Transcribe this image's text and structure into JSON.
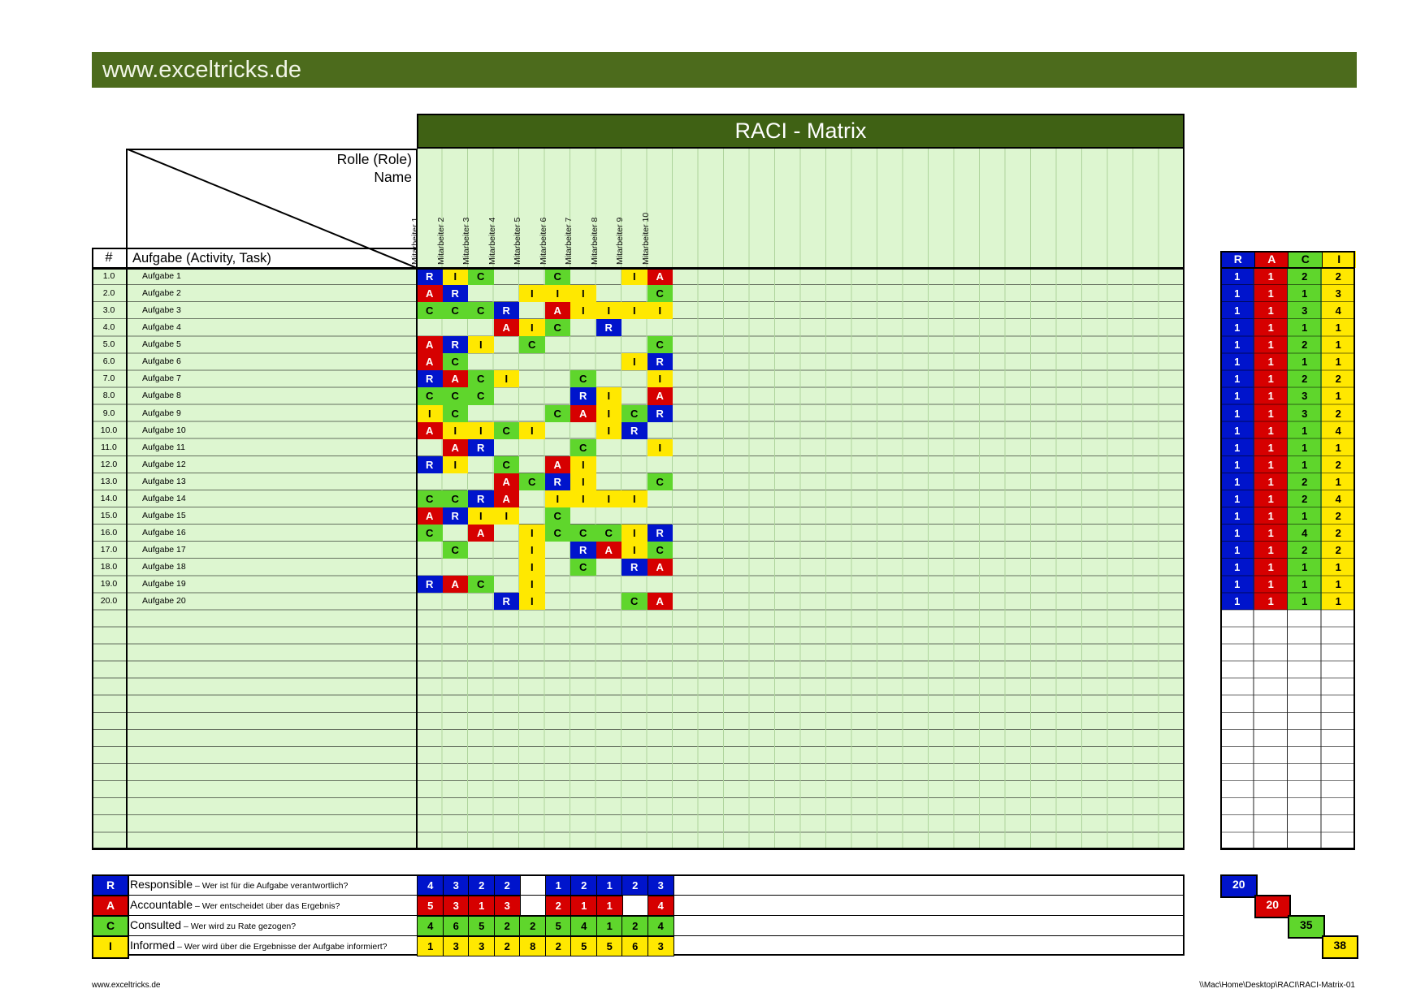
{
  "banner": {
    "site": "www.exceltricks.de"
  },
  "matrix": {
    "title": "RACI - Matrix",
    "corner": {
      "role_label": "Rolle (Role)",
      "name_label": "Name"
    },
    "num_header": "#",
    "task_header": "Aufgabe (Activity, Task)",
    "columns": [
      "Mitarbeiter 1",
      "Mitarbeiter 2",
      "Mitarbeiter 3",
      "Mitarbeiter 4",
      "Mitarbeiter 5",
      "Mitarbeiter 6",
      "Mitarbeiter 7",
      "Mitarbeiter 8",
      "Mitarbeiter 9",
      "Mitarbeiter 10"
    ],
    "rows": [
      {
        "num": "1.0",
        "task": "Aufgabe 1",
        "cells": [
          [
            1,
            "R"
          ],
          [
            2,
            "I"
          ],
          [
            3,
            "C"
          ],
          [
            6,
            "C"
          ],
          [
            9,
            "I"
          ],
          [
            10,
            "A"
          ]
        ]
      },
      {
        "num": "2.0",
        "task": "Aufgabe 2",
        "cells": [
          [
            1,
            "A"
          ],
          [
            2,
            "R"
          ],
          [
            5,
            "I"
          ],
          [
            6,
            "I"
          ],
          [
            7,
            "I"
          ],
          [
            10,
            "C"
          ]
        ]
      },
      {
        "num": "3.0",
        "task": "Aufgabe 3",
        "cells": [
          [
            1,
            "C"
          ],
          [
            2,
            "C"
          ],
          [
            3,
            "C"
          ],
          [
            4,
            "R"
          ],
          [
            6,
            "A"
          ],
          [
            7,
            "I"
          ],
          [
            8,
            "I"
          ],
          [
            9,
            "I"
          ],
          [
            10,
            "I"
          ]
        ]
      },
      {
        "num": "4.0",
        "task": "Aufgabe 4",
        "cells": [
          [
            4,
            "A"
          ],
          [
            5,
            "I"
          ],
          [
            6,
            "C"
          ],
          [
            8,
            "R"
          ]
        ]
      },
      {
        "num": "5.0",
        "task": "Aufgabe 5",
        "cells": [
          [
            1,
            "A"
          ],
          [
            2,
            "R"
          ],
          [
            3,
            "I"
          ],
          [
            5,
            "C"
          ],
          [
            10,
            "C"
          ]
        ]
      },
      {
        "num": "6.0",
        "task": "Aufgabe 6",
        "cells": [
          [
            1,
            "A"
          ],
          [
            2,
            "C"
          ],
          [
            9,
            "I"
          ],
          [
            10,
            "R"
          ]
        ]
      },
      {
        "num": "7.0",
        "task": "Aufgabe 7",
        "cells": [
          [
            1,
            "R"
          ],
          [
            2,
            "A"
          ],
          [
            3,
            "C"
          ],
          [
            4,
            "I"
          ],
          [
            7,
            "C"
          ],
          [
            10,
            "I"
          ]
        ]
      },
      {
        "num": "8.0",
        "task": "Aufgabe 8",
        "cells": [
          [
            1,
            "C"
          ],
          [
            2,
            "C"
          ],
          [
            3,
            "C"
          ],
          [
            7,
            "R"
          ],
          [
            8,
            "I"
          ],
          [
            10,
            "A"
          ]
        ]
      },
      {
        "num": "9.0",
        "task": "Aufgabe 9",
        "cells": [
          [
            1,
            "I"
          ],
          [
            2,
            "C"
          ],
          [
            6,
            "C"
          ],
          [
            7,
            "A"
          ],
          [
            8,
            "I"
          ],
          [
            9,
            "C"
          ],
          [
            10,
            "R"
          ]
        ]
      },
      {
        "num": "10.0",
        "task": "Aufgabe 10",
        "cells": [
          [
            1,
            "A"
          ],
          [
            2,
            "I"
          ],
          [
            3,
            "I"
          ],
          [
            4,
            "C"
          ],
          [
            5,
            "I"
          ],
          [
            8,
            "I"
          ],
          [
            9,
            "R"
          ]
        ]
      },
      {
        "num": "11.0",
        "task": "Aufgabe 11",
        "cells": [
          [
            2,
            "A"
          ],
          [
            3,
            "R"
          ],
          [
            7,
            "C"
          ],
          [
            10,
            "I"
          ]
        ]
      },
      {
        "num": "12.0",
        "task": "Aufgabe 12",
        "cells": [
          [
            1,
            "R"
          ],
          [
            2,
            "I"
          ],
          [
            4,
            "C"
          ],
          [
            6,
            "A"
          ],
          [
            7,
            "I"
          ]
        ]
      },
      {
        "num": "13.0",
        "task": "Aufgabe 13",
        "cells": [
          [
            4,
            "A"
          ],
          [
            5,
            "C"
          ],
          [
            6,
            "R"
          ],
          [
            7,
            "I"
          ],
          [
            10,
            "C"
          ]
        ]
      },
      {
        "num": "14.0",
        "task": "Aufgabe 14",
        "cells": [
          [
            1,
            "C"
          ],
          [
            2,
            "C"
          ],
          [
            3,
            "R"
          ],
          [
            4,
            "A"
          ],
          [
            6,
            "I"
          ],
          [
            7,
            "I"
          ],
          [
            8,
            "I"
          ],
          [
            9,
            "I"
          ]
        ]
      },
      {
        "num": "15.0",
        "task": "Aufgabe 15",
        "cells": [
          [
            1,
            "A"
          ],
          [
            2,
            "R"
          ],
          [
            3,
            "I"
          ],
          [
            4,
            "I"
          ],
          [
            6,
            "C"
          ]
        ]
      },
      {
        "num": "16.0",
        "task": "Aufgabe 16",
        "cells": [
          [
            1,
            "C"
          ],
          [
            3,
            "A"
          ],
          [
            5,
            "I"
          ],
          [
            6,
            "C"
          ],
          [
            7,
            "C"
          ],
          [
            8,
            "C"
          ],
          [
            9,
            "I"
          ],
          [
            10,
            "R"
          ]
        ]
      },
      {
        "num": "17.0",
        "task": "Aufgabe 17",
        "cells": [
          [
            2,
            "C"
          ],
          [
            5,
            "I"
          ],
          [
            7,
            "R"
          ],
          [
            8,
            "A"
          ],
          [
            9,
            "I"
          ],
          [
            10,
            "C"
          ]
        ]
      },
      {
        "num": "18.0",
        "task": "Aufgabe 18",
        "cells": [
          [
            5,
            "I"
          ],
          [
            7,
            "C"
          ],
          [
            9,
            "R"
          ],
          [
            10,
            "A"
          ]
        ]
      },
      {
        "num": "19.0",
        "task": "Aufgabe 19",
        "cells": [
          [
            1,
            "R"
          ],
          [
            2,
            "A"
          ],
          [
            3,
            "C"
          ],
          [
            5,
            "I"
          ]
        ]
      },
      {
        "num": "20.0",
        "task": "Aufgabe 20",
        "cells": [
          [
            4,
            "R"
          ],
          [
            5,
            "I"
          ],
          [
            9,
            "C"
          ],
          [
            10,
            "A"
          ]
        ]
      }
    ]
  },
  "summary": {
    "headers": [
      "R",
      "A",
      "C",
      "I"
    ],
    "rows": [
      [
        1,
        1,
        2,
        2
      ],
      [
        1,
        1,
        1,
        3
      ],
      [
        1,
        1,
        3,
        4
      ],
      [
        1,
        1,
        1,
        1
      ],
      [
        1,
        1,
        2,
        1
      ],
      [
        1,
        1,
        1,
        1
      ],
      [
        1,
        1,
        2,
        2
      ],
      [
        1,
        1,
        3,
        1
      ],
      [
        1,
        1,
        3,
        2
      ],
      [
        1,
        1,
        1,
        4
      ],
      [
        1,
        1,
        1,
        1
      ],
      [
        1,
        1,
        1,
        2
      ],
      [
        1,
        1,
        2,
        1
      ],
      [
        1,
        1,
        2,
        4
      ],
      [
        1,
        1,
        1,
        2
      ],
      [
        1,
        1,
        4,
        2
      ],
      [
        1,
        1,
        2,
        2
      ],
      [
        1,
        1,
        1,
        1
      ],
      [
        1,
        1,
        1,
        1
      ],
      [
        1,
        1,
        1,
        1
      ]
    ]
  },
  "legend": {
    "items": [
      {
        "letter": "R",
        "title": "Responsible",
        "desc": "– Wer ist für die Aufgabe verantwortlich?",
        "counts": [
          "4",
          "3",
          "2",
          "2",
          "",
          "1",
          "2",
          "1",
          "2",
          "3"
        ],
        "total": "20"
      },
      {
        "letter": "A",
        "title": "Accountable",
        "desc": "– Wer entscheidet über das Ergebnis?",
        "counts": [
          "5",
          "3",
          "1",
          "3",
          "",
          "2",
          "1",
          "1",
          "",
          "4"
        ],
        "total": "20"
      },
      {
        "letter": "C",
        "title": "Consulted",
        "desc": "– Wer wird zu Rate gezogen?",
        "counts": [
          "4",
          "6",
          "5",
          "2",
          "2",
          "5",
          "4",
          "1",
          "2",
          "4"
        ],
        "total": "35"
      },
      {
        "letter": "I",
        "title": "Informed",
        "desc": "– Wer wird über die Ergebnisse der Aufgabe informiert?",
        "counts": [
          "1",
          "3",
          "3",
          "2",
          "8",
          "2",
          "5",
          "5",
          "6",
          "3"
        ],
        "total": "38"
      }
    ]
  },
  "colors": {
    "R": "#0014cc",
    "A": "#d60000",
    "C": "#5fd62c",
    "I": "#ffe800",
    "banner": "#4c6b1c",
    "title_bar": "#3f6114",
    "cell_bg": "#ddf6d0"
  },
  "footer": {
    "left": "www.exceltricks.de",
    "right": "\\\\Mac\\Home\\Desktop\\RACI\\RACI-Matrix-01"
  }
}
